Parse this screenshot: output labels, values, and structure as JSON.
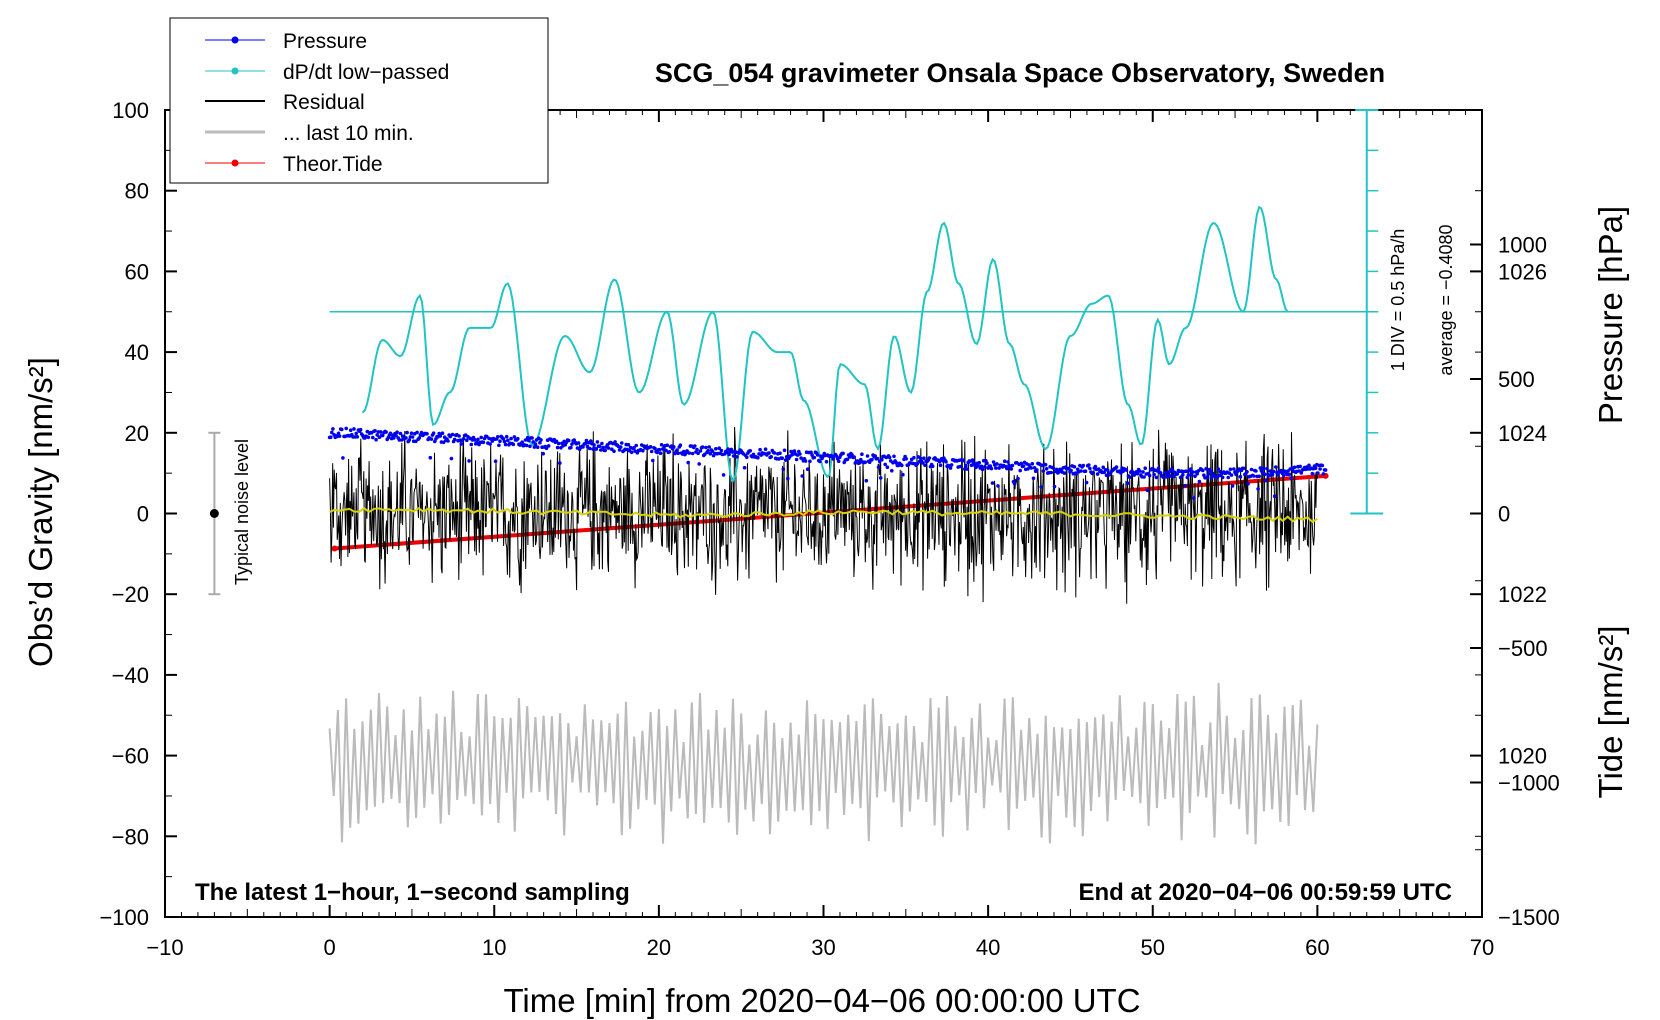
{
  "colors": {
    "pressure": "#0000ee",
    "dpdt": "#22c3c3",
    "residual": "#000000",
    "last10": "#bbbbbb",
    "tide": "#ee0000",
    "residual_mean": "#d6d400",
    "noise_bar": "#aaaaaa"
  },
  "chart_data": {
    "type": "line",
    "title": "SCG_054 gravimeter Onsala Space Observatory, Sweden",
    "xlabel": "Time [min] from 2020−04−06 00:00:00 UTC",
    "ylabel_left": "Obs’d Gravity [nm/s²]",
    "ylabel_pressure": "Pressure [hPa]",
    "ylabel_tide": "Tide [nm/s²]",
    "xlim": [
      -10,
      70
    ],
    "ylim": [
      -100,
      100
    ],
    "pressure_lim": [
      1018,
      1028
    ],
    "tide_lim": [
      -1500,
      1500
    ],
    "x_ticks": [
      -10,
      0,
      10,
      20,
      30,
      40,
      50,
      60,
      70
    ],
    "x_tick_labels": [
      "−10",
      "0",
      "10",
      "20",
      "30",
      "40",
      "50",
      "60",
      "70"
    ],
    "y_ticks": [
      100,
      80,
      60,
      40,
      20,
      0,
      -20,
      -40,
      -60,
      -80,
      -100
    ],
    "y_tick_labels": [
      "100",
      "80",
      "60",
      "40",
      "20",
      "0",
      "−20",
      "−40",
      "−60",
      "−80",
      "−100"
    ],
    "pressure_ticks": [
      1026,
      1024,
      1022,
      1020
    ],
    "pressure_tick_labels": [
      "1026",
      "1024",
      "1022",
      "1020"
    ],
    "tide_ticks": [
      1000,
      500,
      0,
      -500,
      -1000,
      -1500
    ],
    "tide_tick_labels": [
      "1000",
      "500",
      "0",
      "−500",
      "−1000",
      "−1500"
    ],
    "legend": [
      "Pressure",
      "dP/dt low−passed",
      "Residual",
      "... last 10 min.",
      "Theor.Tide"
    ],
    "noise_level_label": "Typical noise level",
    "noise_level": {
      "x": -7,
      "center": 0,
      "half_range": 20
    },
    "dpdt_scale_label": "1 DIV = 0.5 hPa/h",
    "dpdt_average_label": "average = −0.4080",
    "dpdt_baseline": 50,
    "bottom_left_label": "The latest 1−hour, 1−second sampling",
    "bottom_right_label": "End at 2020−04−06 00:59:59 UTC",
    "series": [
      {
        "name": "Pressure",
        "unit": "hPa",
        "x": [
          0,
          5,
          10,
          15,
          20,
          25,
          30,
          35,
          40,
          45,
          50,
          55,
          60.5
        ],
        "values": [
          1024.0,
          1023.95,
          1023.9,
          1023.85,
          1023.8,
          1023.75,
          1023.7,
          1023.65,
          1023.6,
          1023.55,
          1023.5,
          1023.5,
          1023.55
        ]
      },
      {
        "name": "dP/dt low-passed",
        "unit": "nm/s2 axis",
        "x": [
          2.0,
          3.2,
          4.3,
          5.5,
          6.3,
          7.3,
          8.5,
          9.8,
          10.8,
          12.3,
          14.3,
          15.8,
          17.3,
          18.8,
          20.5,
          21.5,
          23.3,
          24.5,
          25.7,
          27.2,
          28.0,
          28.8,
          30.3,
          31.0,
          32.5,
          33.3,
          34.3,
          35.3,
          36.3,
          37.3,
          38.2,
          39.3,
          40.3,
          41.3,
          42.2,
          43.5,
          45.0,
          46.3,
          47.3,
          48.5,
          49.3,
          50.3,
          51.0,
          52.0,
          53.7,
          55.5,
          56.5,
          57.5,
          58.2
        ],
        "values": [
          25,
          43,
          39,
          54,
          22,
          30,
          46,
          46,
          57,
          17,
          44,
          35,
          58,
          30,
          50,
          27,
          50,
          8,
          45,
          40,
          40,
          28,
          9,
          37,
          32,
          16,
          44,
          30,
          55,
          72,
          57,
          42,
          63,
          42,
          32,
          16,
          44,
          52,
          54,
          27,
          17,
          48,
          37,
          46,
          72,
          50,
          76,
          58,
          50
        ]
      },
      {
        "name": "Residual",
        "unit": "nm/s2",
        "x_range": [
          0,
          60
        ],
        "amplitude_max": 23,
        "mean_values": [
          1,
          1,
          0.5,
          0,
          -0.5,
          0,
          0.5,
          0,
          0,
          -0.5,
          -1,
          -1.5
        ]
      },
      {
        "name": "... last 10 min.",
        "unit": "nm/s2",
        "x_range": [
          0,
          60
        ],
        "center": -62,
        "min": -82,
        "max": -41
      },
      {
        "name": "Theor.Tide",
        "unit": "nm/s2",
        "x": [
          0.3,
          60.5
        ],
        "values": [
          -130,
          140
        ]
      }
    ]
  }
}
